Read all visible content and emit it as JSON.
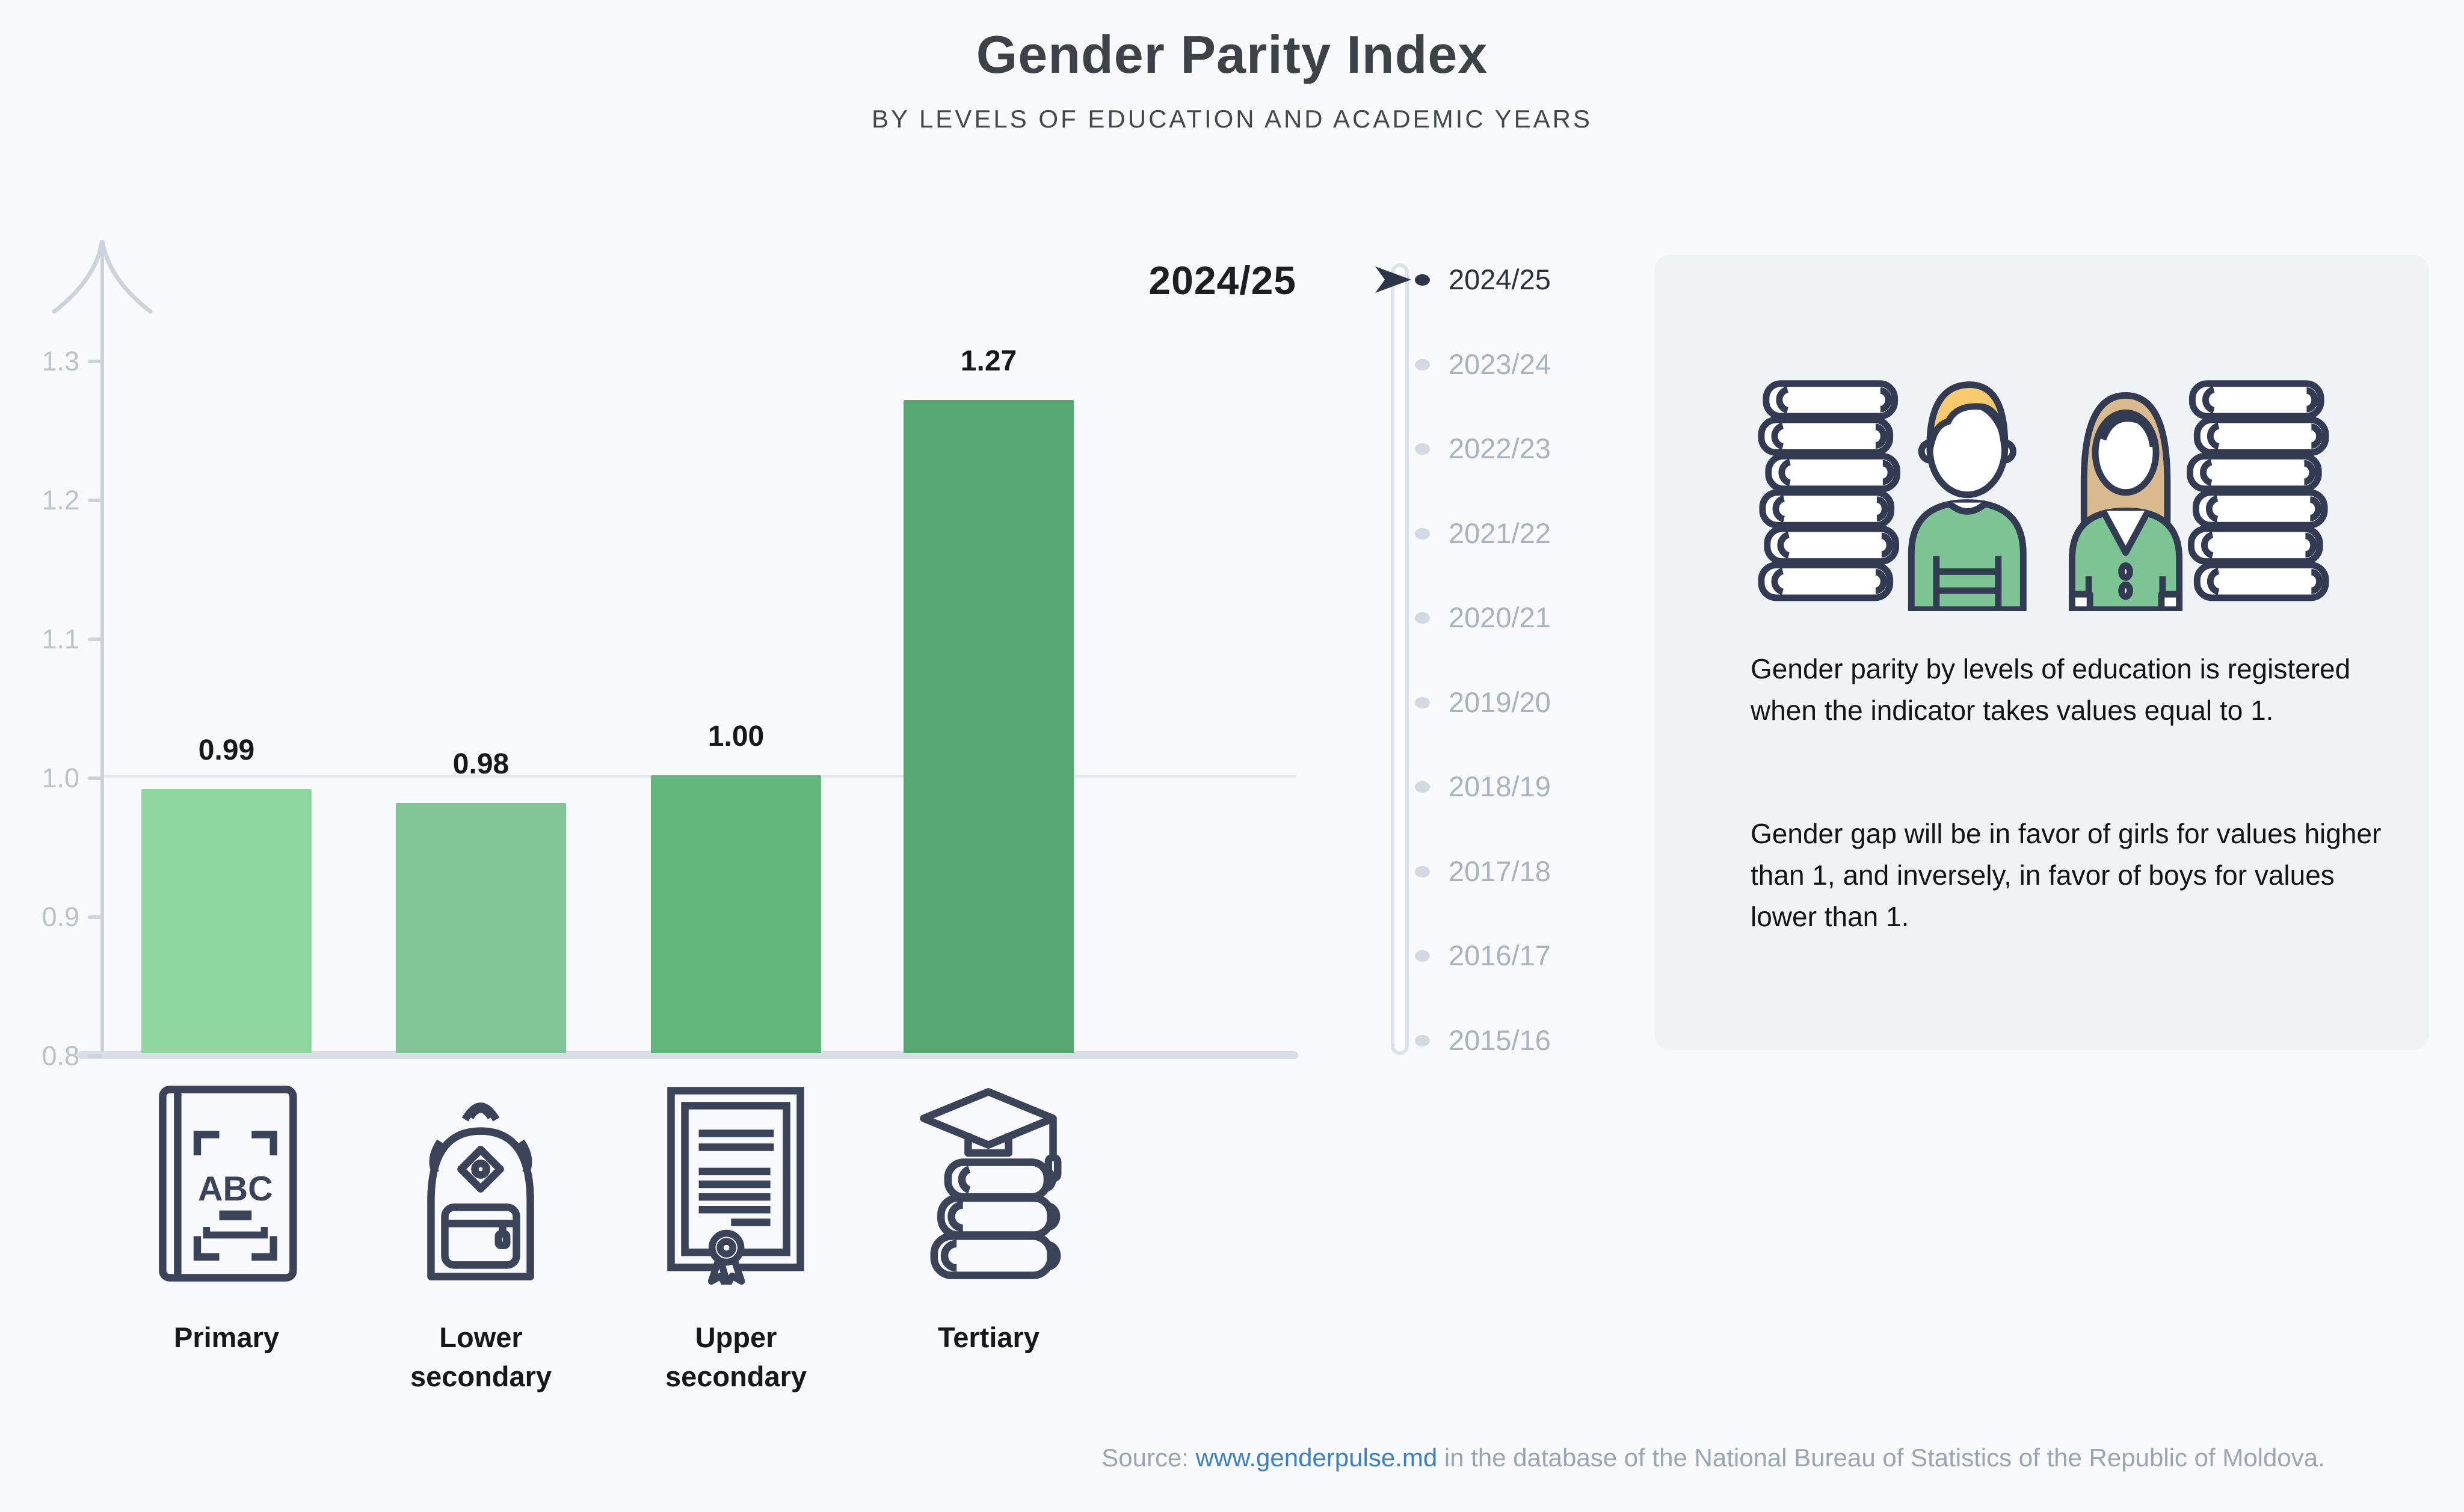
{
  "header": {
    "title": "Gender Parity Index",
    "subtitle": "BY LEVELS OF EDUCATION AND ACADEMIC YEARS"
  },
  "selected_year_label": "2024/25",
  "chart_data": {
    "type": "bar",
    "title": "Gender Parity Index",
    "subtitle": "BY LEVELS OF EDUCATION AND ACADEMIC YEARS",
    "categories": [
      "Primary",
      "Lower secondary",
      "Upper secondary",
      "Tertiary"
    ],
    "values": [
      0.99,
      0.98,
      1.0,
      1.27
    ],
    "value_labels": [
      "0.99",
      "0.98",
      "1.00",
      "1.27"
    ],
    "bar_colors": [
      "#90d6a0",
      "#82c698",
      "#62b77c",
      "#57a870"
    ],
    "category_icons": [
      "abc-book-icon",
      "backpack-icon",
      "diploma-icon",
      "books-graduation-cap-icon"
    ],
    "y_ticks": [
      "1.3",
      "1.2",
      "1.1",
      "1.0",
      "0.9",
      "0.8"
    ],
    "ylim": [
      0.8,
      1.345
    ],
    "reference_line": 1.0,
    "grid": "single horizontal gridline at 1.0",
    "legend": "none",
    "xlabel": "",
    "ylabel": "",
    "series_year": "2024/25"
  },
  "timeline": {
    "selected": "2024/25",
    "years": [
      "2024/25",
      "2023/24",
      "2022/23",
      "2021/22",
      "2020/21",
      "2019/20",
      "2018/19",
      "2017/18",
      "2016/17",
      "2015/16"
    ]
  },
  "info_panel": {
    "illustration": "boy-and-girl-students-with-book-stacks",
    "paragraph1": "Gender parity by levels of education is registered when the indicator takes values equal to 1.",
    "paragraph2": "Gender gap will be in favor of girls for values higher than 1, and inversely, in favor of boys for values lower than 1."
  },
  "source": {
    "prefix": "Source: ",
    "link": "www.genderpulse.md",
    "suffix": " in the database of the National Bureau of Statistics of the Republic of Moldova."
  },
  "colors": {
    "background": "#f7f9fb",
    "panel_background": "#f0f3f6",
    "axis_gray": "#ccd3dc",
    "baseline_gray": "#d7dee5",
    "tick_text": "#b9c1cb",
    "dark_navy": "#2d3549",
    "outline_navy": "#3a4358",
    "boy_hair": "#f7ca6e",
    "girl_hair": "#d8ba8e",
    "shirt_green": "#7cc494",
    "link_blue": "#3a80c2",
    "source_gray": "#99a5b2"
  }
}
